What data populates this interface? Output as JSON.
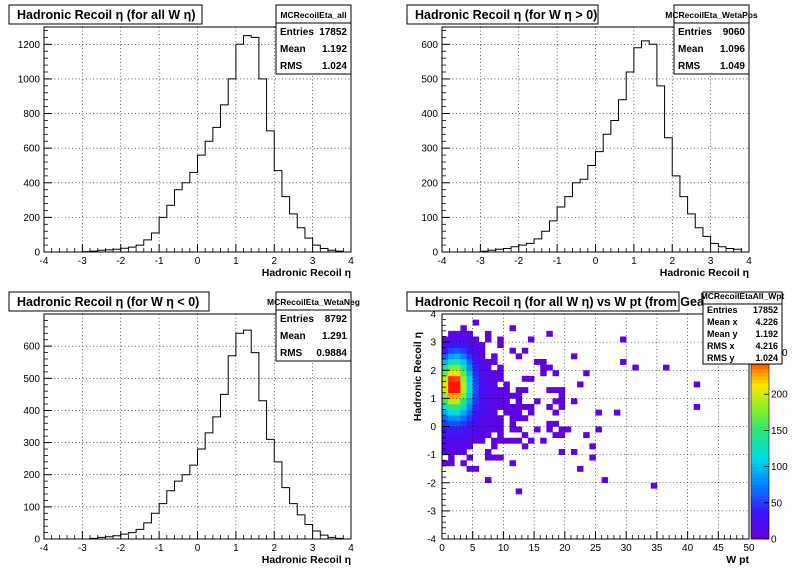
{
  "chart_data": [
    {
      "type": "bar",
      "title": "Hadronic Recoil η (for all W η)",
      "xlabel": "Hadronic Recoil η",
      "ylabel": "",
      "xlim": [
        -4,
        4
      ],
      "ylim": [
        0,
        1300
      ],
      "x_ticks": [
        "-4",
        "-3",
        "-2",
        "-1",
        "0",
        "1",
        "2",
        "3",
        "4"
      ],
      "y_ticks": [
        "0",
        "200",
        "400",
        "600",
        "800",
        "1000",
        "1200"
      ],
      "stats": {
        "name": "MCRecoilEta_all",
        "rows": [
          [
            "Entries",
            "17852"
          ],
          [
            "Mean",
            "1.192"
          ],
          [
            "RMS",
            "1.024"
          ]
        ]
      },
      "bin_edges_start": -4,
      "bin_width": 0.2,
      "values": [
        0,
        0,
        0,
        0,
        0,
        2,
        5,
        10,
        12,
        16,
        22,
        28,
        40,
        70,
        110,
        200,
        270,
        360,
        400,
        460,
        560,
        640,
        720,
        850,
        1000,
        1200,
        1250,
        1240,
        1000,
        700,
        470,
        320,
        220,
        140,
        80,
        40,
        20,
        10,
        5,
        0
      ],
      "grid": true
    },
    {
      "type": "bar",
      "title": "Hadronic Recoil η (for W η > 0)",
      "xlabel": "Hadronic Recoil η",
      "ylabel": "",
      "xlim": [
        -4,
        4
      ],
      "ylim": [
        0,
        650
      ],
      "x_ticks": [
        "-4",
        "-3",
        "-2",
        "-1",
        "0",
        "1",
        "2",
        "3",
        "4"
      ],
      "y_ticks": [
        "0",
        "100",
        "200",
        "300",
        "400",
        "500",
        "600"
      ],
      "stats": {
        "name": "MCRecoilEta_WetaPos",
        "rows": [
          [
            "Entries",
            "9060"
          ],
          [
            "Mean",
            "1.096"
          ],
          [
            "RMS",
            "1.049"
          ]
        ]
      },
      "bin_edges_start": -4,
      "bin_width": 0.2,
      "values": [
        0,
        0,
        0,
        0,
        0,
        2,
        5,
        8,
        10,
        15,
        20,
        25,
        38,
        60,
        90,
        130,
        160,
        200,
        210,
        250,
        290,
        340,
        380,
        440,
        520,
        590,
        610,
        600,
        480,
        330,
        220,
        160,
        110,
        70,
        45,
        25,
        15,
        10,
        8,
        0
      ],
      "grid": true
    },
    {
      "type": "bar",
      "title": "Hadronic Recoil η (for W η < 0)",
      "xlabel": "Hadronic Recoil η",
      "ylabel": "",
      "xlim": [
        -4,
        4
      ],
      "ylim": [
        0,
        700
      ],
      "x_ticks": [
        "-4",
        "-3",
        "-2",
        "-1",
        "0",
        "1",
        "2",
        "3",
        "4"
      ],
      "y_ticks": [
        "0",
        "100",
        "200",
        "300",
        "400",
        "500",
        "600"
      ],
      "stats": {
        "name": "MCRecoilEta_WetaNeg",
        "rows": [
          [
            "Entries",
            "8792"
          ],
          [
            "Mean",
            "1.291"
          ],
          [
            "RMS",
            "0.9884"
          ]
        ]
      },
      "bin_edges_start": -4,
      "bin_width": 0.2,
      "values": [
        0,
        0,
        0,
        0,
        0,
        0,
        2,
        5,
        7,
        10,
        15,
        20,
        30,
        50,
        80,
        110,
        150,
        180,
        200,
        230,
        280,
        330,
        380,
        450,
        570,
        640,
        650,
        580,
        430,
        310,
        240,
        160,
        110,
        75,
        45,
        25,
        12,
        5,
        2,
        0
      ],
      "grid": true
    },
    {
      "type": "heatmap",
      "title": "Hadronic Recoil η (for all W η) vs W pt (from Geant)",
      "xlabel": "W pt",
      "ylabel": "Hadronic Recoil η",
      "xlim": [
        0,
        50
      ],
      "ylim": [
        -4,
        4
      ],
      "x_ticks": [
        "0",
        "5",
        "10",
        "15",
        "20",
        "25",
        "30",
        "35",
        "40",
        "45",
        "50"
      ],
      "y_ticks": [
        "-4",
        "-3",
        "-2",
        "-1",
        "0",
        "1",
        "2",
        "3",
        "4"
      ],
      "colorbar_ticks": [
        "0",
        "50",
        "100",
        "150",
        "200"
      ],
      "colorbar_max": 250,
      "stats": {
        "name": "MCRecoilEtaAll_Wpt",
        "rows": [
          [
            "Entries",
            "17852"
          ],
          [
            "Mean x",
            "4.226"
          ],
          [
            "Mean y",
            "1.192"
          ],
          [
            "RMS x",
            "4.216"
          ],
          [
            "RMS y",
            "1.024"
          ]
        ]
      },
      "peak": {
        "x": 2,
        "y": 1.5,
        "value": 240
      },
      "grid": true
    }
  ]
}
